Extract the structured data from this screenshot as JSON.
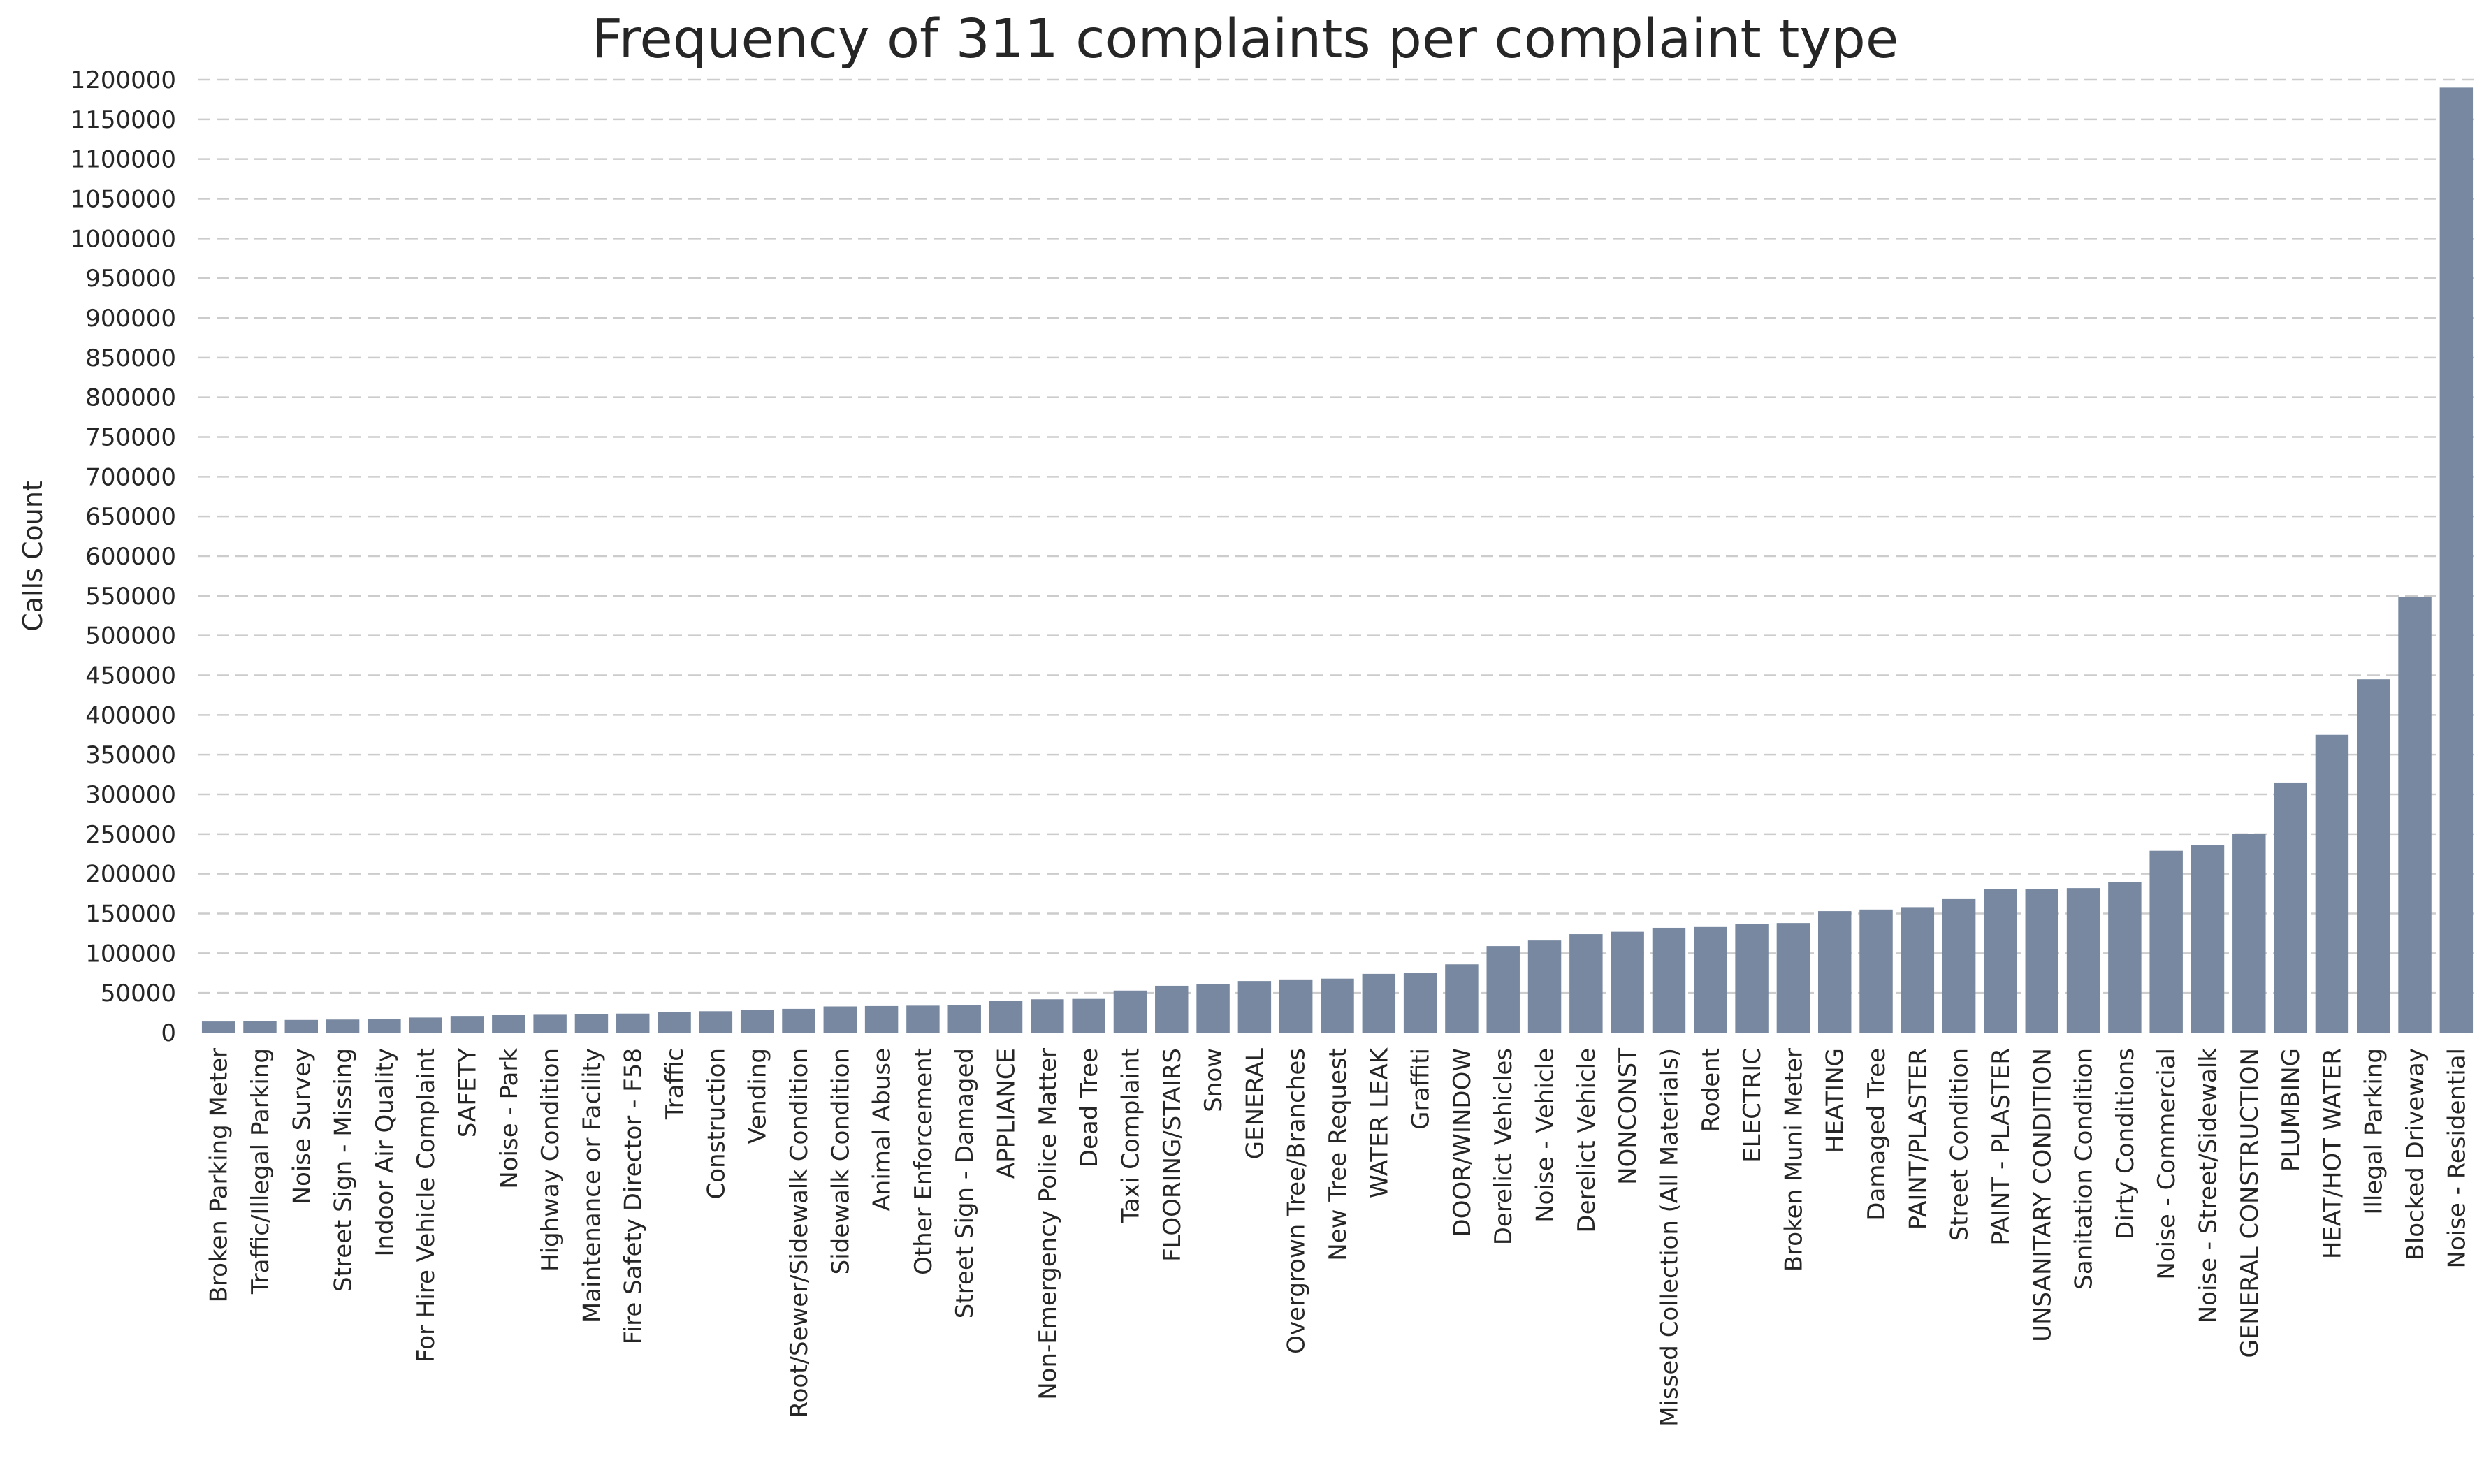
{
  "chart_data": {
    "type": "bar",
    "title": "Frequency of 311 complaints per complaint type",
    "xlabel": "",
    "ylabel": "Calls Count",
    "ylim": [
      0,
      1200000
    ],
    "y_ticks": [
      0,
      50000,
      100000,
      150000,
      200000,
      250000,
      300000,
      350000,
      400000,
      450000,
      500000,
      550000,
      600000,
      650000,
      700000,
      750000,
      800000,
      850000,
      900000,
      950000,
      1000000,
      1050000,
      1100000,
      1150000,
      1200000
    ],
    "grid": "y-dashed",
    "bar_color": "#7788a0",
    "categories": [
      "Broken Parking Meter",
      "Traffic/Illegal Parking",
      "Noise Survey",
      "Street Sign - Missing",
      "Indoor Air Quality",
      "For Hire Vehicle Complaint",
      "SAFETY",
      "Noise - Park",
      "Highway Condition",
      "Maintenance or Facility",
      "Fire Safety Director - F58",
      "Traffic",
      "Construction",
      "Vending",
      "Root/Sewer/Sidewalk Condition",
      "Sidewalk Condition",
      "Animal Abuse",
      "Other Enforcement",
      "Street Sign - Damaged",
      "APPLIANCE",
      "Non-Emergency Police Matter",
      "Dead Tree",
      "Taxi Complaint",
      "FLOORING/STAIRS",
      "Snow",
      "GENERAL",
      "Overgrown Tree/Branches",
      "New Tree Request",
      "WATER LEAK",
      "Graffiti",
      "DOOR/WINDOW",
      "Derelict Vehicles",
      "Noise - Vehicle",
      "Derelict Vehicle",
      "NONCONST",
      "Missed Collection (All Materials)",
      "Rodent",
      "ELECTRIC",
      "Broken Muni Meter",
      "HEATING",
      "Damaged Tree",
      "PAINT/PLASTER",
      "Street Condition",
      "PAINT - PLASTER",
      "UNSANITARY CONDITION",
      "Sanitation Condition",
      "Dirty Conditions",
      "Noise - Commercial",
      "Noise - Street/Sidewalk",
      "GENERAL CONSTRUCTION",
      "PLUMBING",
      "HEAT/HOT WATER",
      "Illegal Parking",
      "Blocked Driveway",
      "Noise - Residential"
    ],
    "values": [
      14000,
      14500,
      16000,
      16500,
      17000,
      19000,
      21000,
      22000,
      22500,
      23000,
      24000,
      26000,
      27000,
      28500,
      30000,
      33000,
      33500,
      34000,
      34500,
      40000,
      42000,
      42500,
      53000,
      59000,
      61000,
      65000,
      67000,
      68000,
      74000,
      75000,
      86000,
      109000,
      116000,
      124000,
      127000,
      132000,
      133000,
      137000,
      138000,
      153000,
      155000,
      158000,
      169000,
      181000,
      181000,
      182000,
      190000,
      229000,
      236000,
      250000,
      315000,
      375000,
      445000,
      549000,
      1190000
    ]
  }
}
